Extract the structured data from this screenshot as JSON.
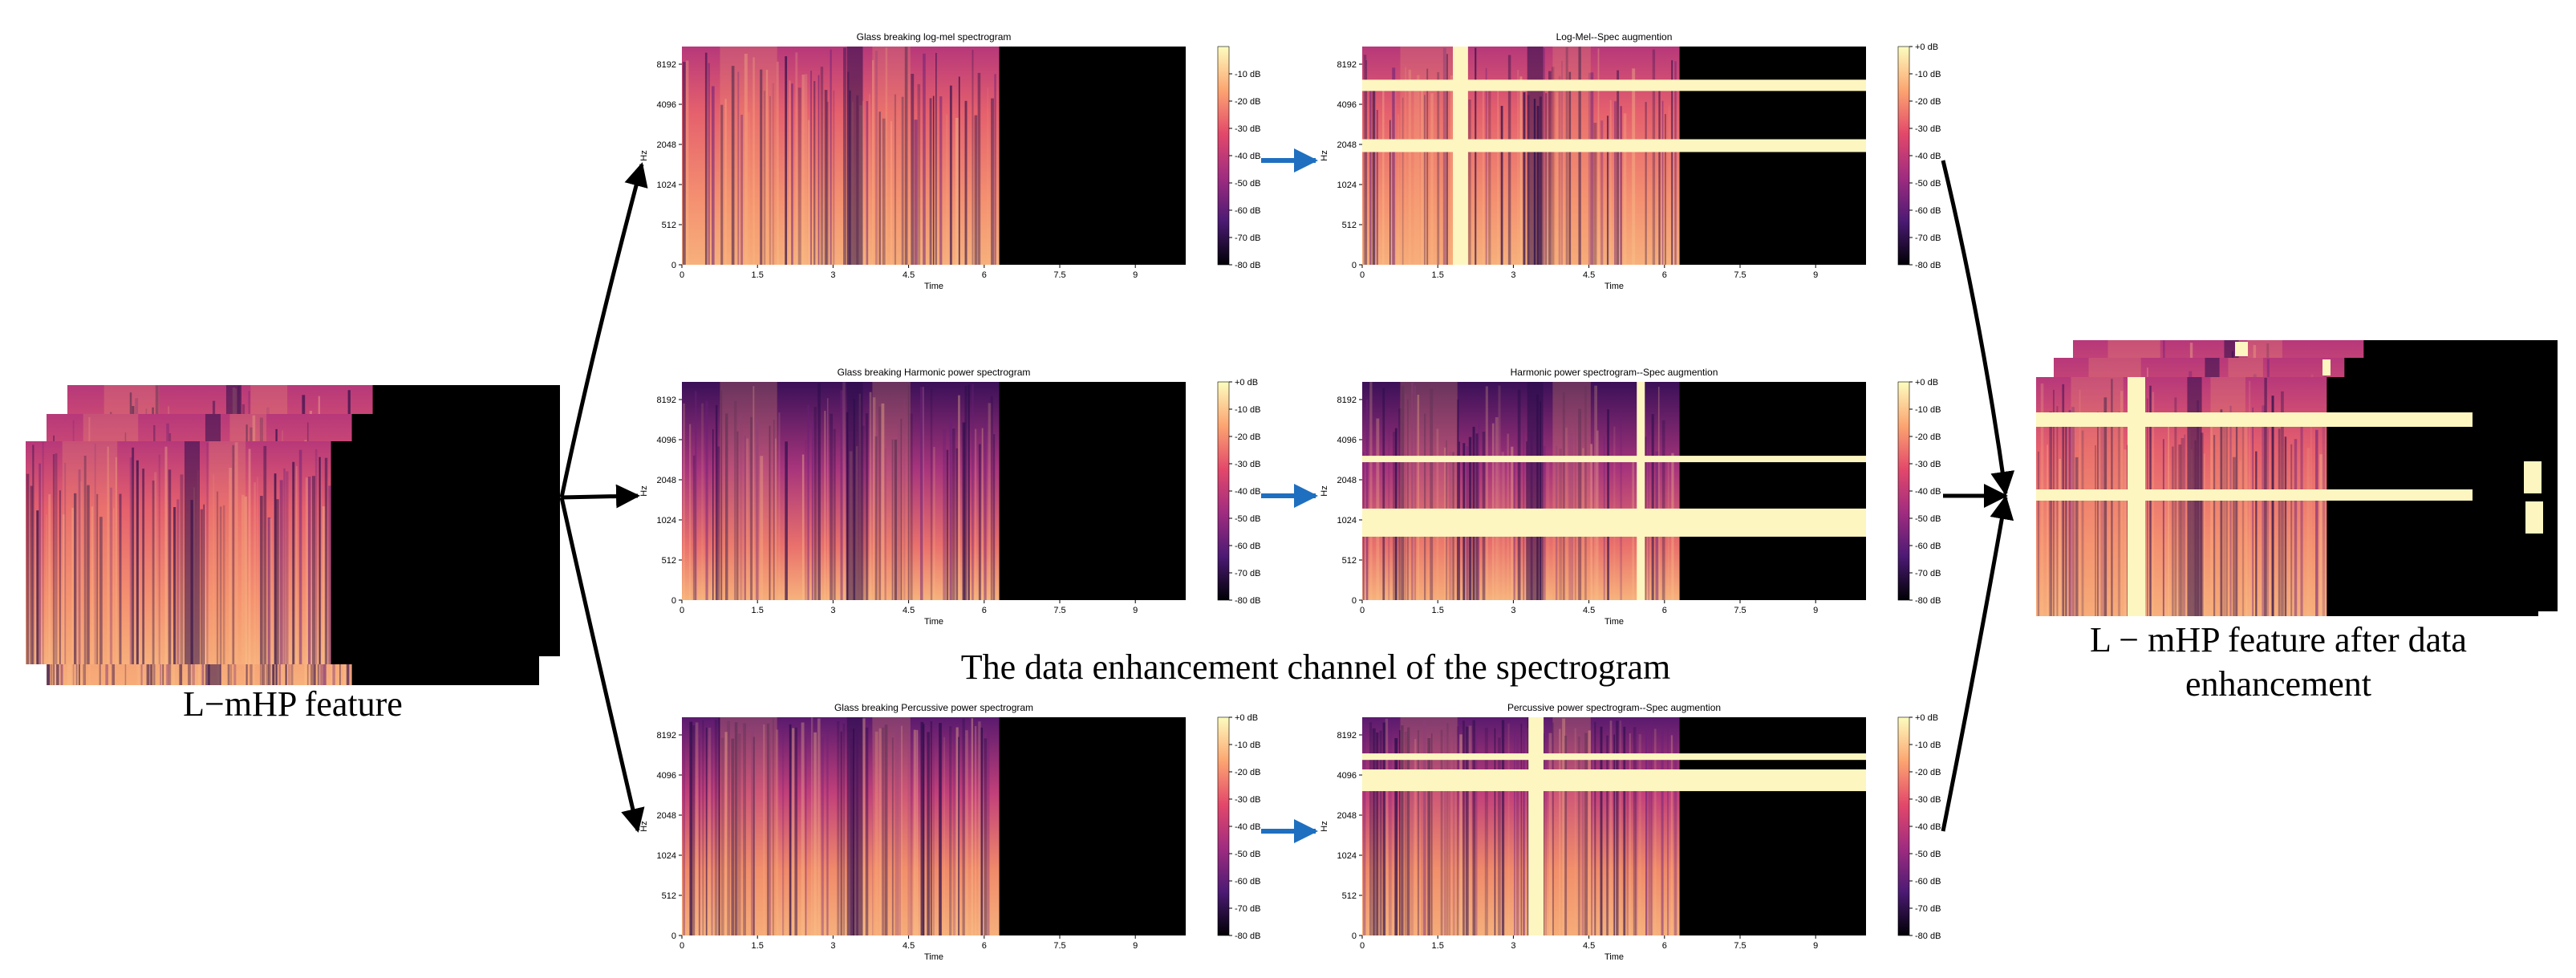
{
  "figure": {
    "left_label": "L−mHP feature",
    "center_caption": "The data enhancement channel of the spectrogram",
    "right_label_line1": "L − mHP feature after data",
    "right_label_line2": "enhancement"
  },
  "axes": {
    "y_label": "Hz",
    "x_label": "Time",
    "y_ticks": [
      "0",
      "512",
      "1024",
      "2048",
      "4096",
      "8192"
    ],
    "x_ticks": [
      "0",
      "1.5",
      "3",
      "4.5",
      "6",
      "7.5",
      "9"
    ]
  },
  "colorbars": {
    "log_mel_ticks": [
      "-10 dB",
      "-20 dB",
      "-30 dB",
      "-40 dB",
      "-50 dB",
      "-60 dB",
      "-70 dB",
      "-80 dB"
    ],
    "power_ticks": [
      "+0 dB",
      "-10 dB",
      "-20 dB",
      "-30 dB",
      "-40 dB",
      "-50 dB",
      "-60 dB",
      "-70 dB",
      "-80 dB"
    ]
  },
  "panels": [
    {
      "id": "logmel",
      "title": "Glass breaking log-mel spectrogram",
      "colorbar": "log_mel"
    },
    {
      "id": "harmonic",
      "title": "Glass breaking Harmonic power spectrogram",
      "colorbar": "power"
    },
    {
      "id": "percussive",
      "title": "Glass breaking Percussive power spectrogram",
      "colorbar": "power"
    },
    {
      "id": "logmel-aug",
      "title": "Log-Mel--Spec augmention",
      "colorbar": "power",
      "time_masks_s": [
        [
          1.8,
          2.1
        ]
      ],
      "freq_masks_hz": [
        [
          1800,
          2300
        ],
        [
          5800,
          7200
        ]
      ]
    },
    {
      "id": "harmonic-aug",
      "title": "Harmonic power spectrogram--Spec augmention",
      "colorbar": "power",
      "time_masks_s": [
        [
          5.45,
          5.6
        ]
      ],
      "freq_masks_hz": [
        [
          700,
          1200
        ],
        [
          3000,
          3300
        ]
      ]
    },
    {
      "id": "percussive-aug",
      "title": "Percussive power spectrogram--Spec augmention",
      "colorbar": "power",
      "time_masks_s": [
        [
          3.3,
          3.6
        ]
      ],
      "freq_masks_hz": [
        [
          3300,
          5000
        ],
        [
          6000,
          6800
        ]
      ]
    }
  ],
  "colors": {
    "arrow_black": "#000000",
    "arrow_blue": "#1f6fc0",
    "mask": "#fdf6c0",
    "spec_hot": "#f6a47a",
    "spec_mid": "#c93e78",
    "spec_cold": "#2a0d4a",
    "background": "#000000"
  }
}
